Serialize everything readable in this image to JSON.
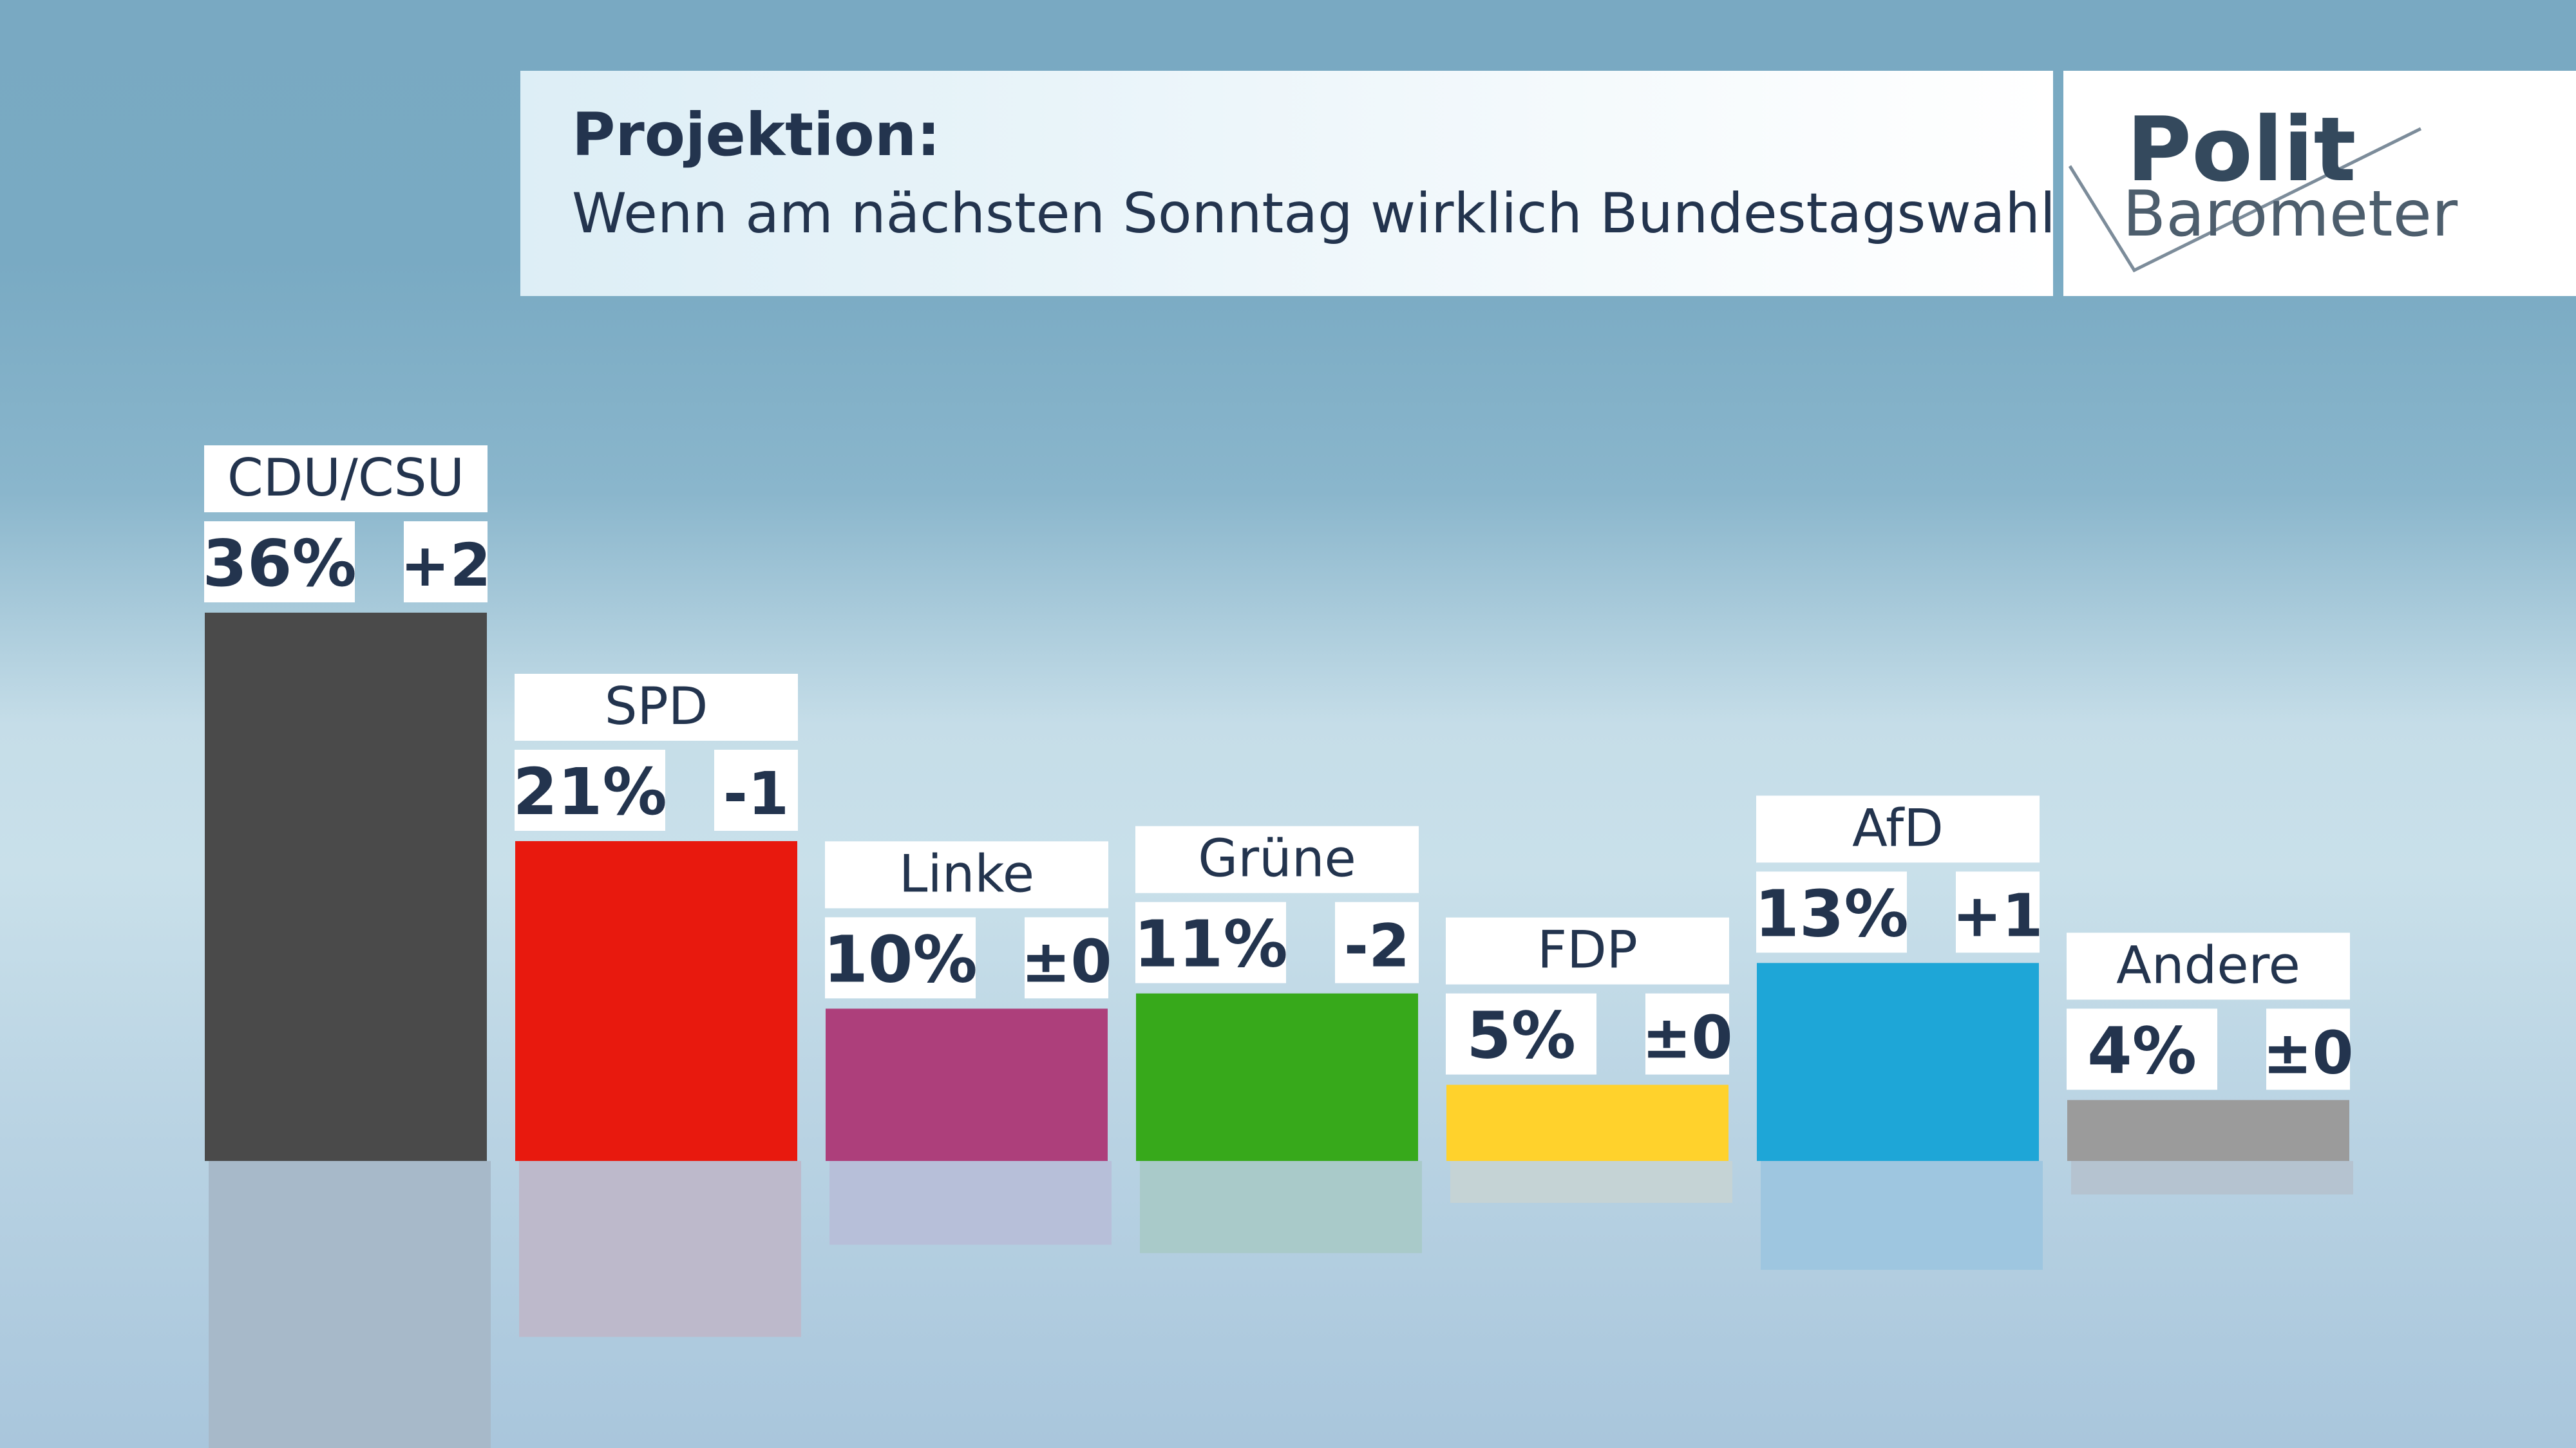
{
  "title": {
    "heading": "Projektion:",
    "subtitle": "Wenn am nächsten Sonntag wirklich Bundestagswahl wäre ..."
  },
  "logo": {
    "line1": "Polit",
    "line2": "Barometer"
  },
  "chart_data": {
    "type": "bar",
    "title": "Projektion:",
    "subtitle": "Wenn am nächsten Sonntag wirklich Bundestagswahl wäre ...",
    "unit": "%",
    "categories": [
      "CDU/CSU",
      "SPD",
      "Linke",
      "Grüne",
      "FDP",
      "AfD",
      "Andere"
    ],
    "values": [
      36,
      21,
      10,
      11,
      5,
      13,
      4
    ],
    "value_labels": [
      "36%",
      "21%",
      "10%",
      "11%",
      "5%",
      "13%",
      "4%"
    ],
    "changes": [
      "+2",
      "-1",
      "±0",
      "-2",
      "±0",
      "+1",
      "±0"
    ],
    "colors": [
      "#4a4a4a",
      "#e8190e",
      "#ad3f7b",
      "#37a91b",
      "#ffd22c",
      "#1ea6d7",
      "#9b9b9b"
    ],
    "reflection_colors": [
      "#a7b9c9",
      "#bdb9cb",
      "#b7bfd9",
      "#a9cac9",
      "#c5d3d5",
      "#9ec6e0",
      "#b5c3d0"
    ],
    "ylim": [
      0,
      36
    ],
    "grid": false,
    "legend": "none"
  }
}
